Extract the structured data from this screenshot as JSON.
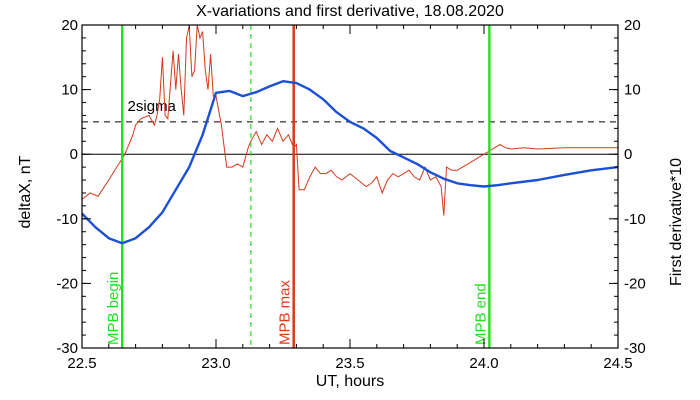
{
  "chart_data": {
    "type": "line",
    "title": "X-variations and first derivative, 18.08.2020",
    "xlabel": "UT, hours",
    "ylabel_left": "deltaX, nT",
    "ylabel_right": "First derivative*10",
    "xlim": [
      22.5,
      24.5
    ],
    "ylim": [
      -30,
      20
    ],
    "x_ticks": [
      22.5,
      23.0,
      23.5,
      24.0,
      24.5
    ],
    "x_tick_labels": [
      "22.5",
      "23.0",
      "23.5",
      "24.0",
      "24.5"
    ],
    "y_ticks": [
      -30,
      -20,
      -10,
      0,
      10,
      20
    ],
    "y_tick_labels_left": [
      "-30",
      "-20",
      "-10",
      "0",
      "10",
      "20"
    ],
    "y_tick_labels_right": [
      "-30",
      "-20",
      "-10",
      "0",
      "10",
      "20"
    ],
    "colors": {
      "deltaX": "#1a4fd6",
      "derivative": "#d43a1a",
      "green": "#22e022",
      "red_line": "#e23a1a",
      "axis": "#000000"
    },
    "threshold": {
      "label": "2sigma",
      "y": 5
    },
    "series": [
      {
        "role": "deltaX",
        "x": [
          22.5,
          22.55,
          22.6,
          22.65,
          22.7,
          22.75,
          22.8,
          22.85,
          22.9,
          22.95,
          23.0,
          23.05,
          23.1,
          23.15,
          23.2,
          23.25,
          23.3,
          23.35,
          23.4,
          23.45,
          23.5,
          23.55,
          23.6,
          23.65,
          23.7,
          23.75,
          23.8,
          23.85,
          23.9,
          23.95,
          24.0,
          24.05,
          24.1,
          24.2,
          24.3,
          24.4,
          24.5
        ],
        "y": [
          -9.2,
          -11.3,
          -13.0,
          -13.8,
          -13.0,
          -11.3,
          -9.0,
          -5.5,
          -2.0,
          3.0,
          9.5,
          9.8,
          9.0,
          9.6,
          10.5,
          11.3,
          11.0,
          10.0,
          8.5,
          6.5,
          5.0,
          4.0,
          2.5,
          0.5,
          -0.5,
          -1.5,
          -2.8,
          -3.8,
          -4.5,
          -4.8,
          -5.0,
          -4.8,
          -4.5,
          -4.0,
          -3.2,
          -2.5,
          -2.0
        ]
      },
      {
        "role": "derivative",
        "x": [
          22.5,
          22.53,
          22.56,
          22.6,
          22.63,
          22.66,
          22.69,
          22.7,
          22.72,
          22.75,
          22.77,
          22.78,
          22.79,
          22.8,
          22.81,
          22.82,
          22.84,
          22.85,
          22.86,
          22.87,
          22.88,
          22.89,
          22.9,
          22.91,
          22.92,
          22.93,
          22.94,
          22.95,
          22.96,
          22.97,
          22.98,
          22.99,
          23.0,
          23.02,
          23.04,
          23.06,
          23.08,
          23.1,
          23.12,
          23.13,
          23.15,
          23.17,
          23.19,
          23.21,
          23.23,
          23.25,
          23.27,
          23.29,
          23.3,
          23.31,
          23.33,
          23.35,
          23.37,
          23.39,
          23.41,
          23.43,
          23.45,
          23.47,
          23.5,
          23.53,
          23.56,
          23.58,
          23.6,
          23.62,
          23.64,
          23.66,
          23.68,
          23.7,
          23.72,
          23.74,
          23.76,
          23.78,
          23.8,
          23.82,
          23.84,
          23.85,
          23.86,
          23.88,
          23.9,
          23.92,
          23.94,
          23.96,
          23.98,
          24.0,
          24.02,
          24.04,
          24.06,
          24.08,
          24.1,
          24.15,
          24.2,
          24.3,
          24.4,
          24.5
        ],
        "y": [
          -7.0,
          -6.0,
          -6.5,
          -4.0,
          -2.0,
          0.0,
          3.0,
          4.5,
          5.5,
          6.0,
          4.5,
          6.0,
          8.5,
          15.0,
          6.0,
          5.5,
          16.0,
          10.0,
          15.5,
          10.0,
          6.0,
          18.0,
          19.8,
          12.0,
          13.0,
          20.0,
          18.0,
          19.0,
          13.0,
          10.0,
          15.5,
          9.0,
          9.0,
          4.5,
          -2.0,
          -2.0,
          -1.5,
          -2.0,
          1.0,
          2.0,
          3.5,
          1.5,
          3.0,
          2.0,
          4.0,
          2.0,
          3.0,
          1.0,
          1.5,
          -5.5,
          -5.5,
          -3.5,
          -2.0,
          -3.0,
          -3.0,
          -2.5,
          -3.5,
          -4.0,
          -3.0,
          -4.0,
          -5.0,
          -4.5,
          -3.5,
          -6.0,
          -4.0,
          -3.0,
          -3.5,
          -3.0,
          -2.5,
          -3.5,
          -4.0,
          -2.0,
          -4.0,
          -3.5,
          -5.0,
          -9.5,
          -2.0,
          -2.5,
          -2.5,
          -2.0,
          -1.5,
          -1.0,
          -0.5,
          0.0,
          0.5,
          1.0,
          1.5,
          1.0,
          0.8,
          1.0,
          0.8,
          1.0,
          1.0,
          1.0
        ]
      }
    ],
    "vertical_markers": [
      {
        "x": 22.65,
        "label": "MPB begin",
        "role": "green",
        "style": "solid"
      },
      {
        "x": 23.13,
        "label": "",
        "role": "green",
        "style": "dashed"
      },
      {
        "x": 23.29,
        "label": "MPB max",
        "role": "red_line",
        "style": "solid"
      },
      {
        "x": 24.02,
        "label": "MPB end",
        "role": "green",
        "style": "solid"
      }
    ],
    "grid": false
  }
}
